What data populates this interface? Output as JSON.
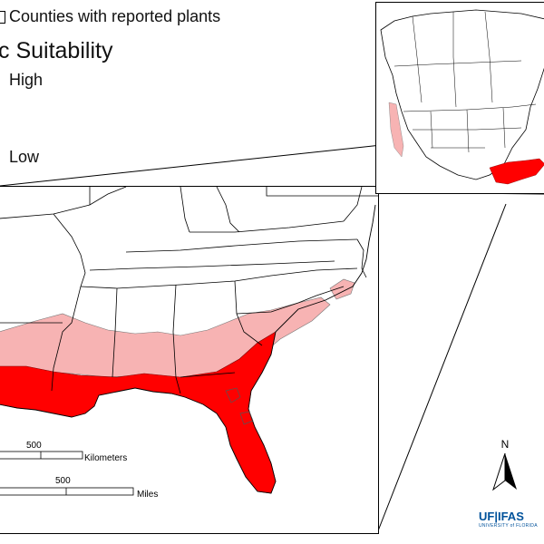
{
  "legend": {
    "counties_label": "Counties with reported plants",
    "title": "c Suitability",
    "high_label": "High",
    "low_label": "Low"
  },
  "scale": {
    "km_value": "500",
    "km_unit": "Kilometers",
    "mi_value": "500",
    "mi_unit": "Miles"
  },
  "north": {
    "label": "N"
  },
  "logo": {
    "main": "UF|IFAS",
    "sub": "UNIVERSITY of FLORIDA"
  },
  "colors": {
    "high": "#ff0000",
    "mid": "#cc1010",
    "low": "#f7b3b3",
    "boundary": "#000000",
    "logo_blue": "#00529b"
  }
}
